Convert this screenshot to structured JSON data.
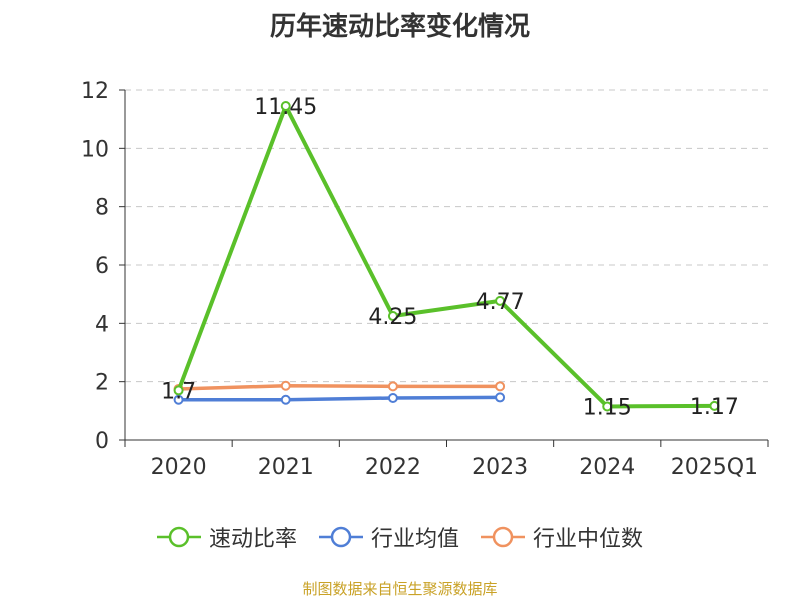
{
  "title": "历年速动比率变化情况",
  "source": "制图数据来自恒生聚源数据库",
  "chart_data": {
    "type": "line",
    "title": "历年速动比率变化情况",
    "categories": [
      "2020",
      "2021",
      "2022",
      "2023",
      "2024",
      "2025Q1"
    ],
    "ylim": [
      0,
      12
    ],
    "yticks": [
      0,
      2,
      4,
      6,
      8,
      10,
      12
    ],
    "grid": true,
    "legend_position": "bottom",
    "series": [
      {
        "name": "速动比率",
        "color": "#5ac02a",
        "values": [
          1.7,
          11.45,
          4.25,
          4.77,
          1.15,
          1.17
        ],
        "labels": [
          "1.7",
          "11.45",
          "4.25",
          "4.77",
          "1.15",
          "1.17"
        ]
      },
      {
        "name": "行业均值",
        "color": "#4f7ed6",
        "values": [
          1.38,
          1.38,
          1.44,
          1.46,
          null,
          null
        ]
      },
      {
        "name": "行业中位数",
        "color": "#f0925f",
        "values": [
          1.75,
          1.86,
          1.84,
          1.84,
          null,
          null
        ]
      }
    ]
  }
}
